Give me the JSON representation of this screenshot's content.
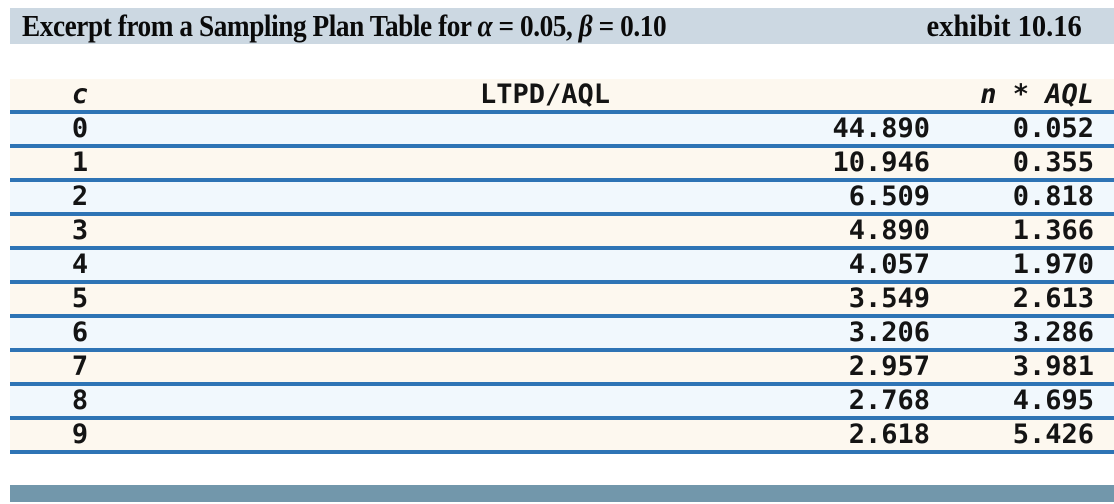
{
  "banner": {
    "title": {
      "part1": "Excerpt from a Sampling Plan Table for ",
      "alpha": "α",
      "part2": " = 0.05, ",
      "beta": "β",
      "part3": " = 0.10"
    },
    "exhibit": "exhibit 10.16",
    "bg_color": "#ccd8e2"
  },
  "table": {
    "columns": [
      "c",
      "LTPD/AQL",
      "n * AQL"
    ],
    "rows": [
      {
        "c": "0",
        "ltpd_aql": "44.890",
        "n_aql": "0.052"
      },
      {
        "c": "1",
        "ltpd_aql": "10.946",
        "n_aql": "0.355"
      },
      {
        "c": "2",
        "ltpd_aql": "6.509",
        "n_aql": "0.818"
      },
      {
        "c": "3",
        "ltpd_aql": "4.890",
        "n_aql": "1.366"
      },
      {
        "c": "4",
        "ltpd_aql": "4.057",
        "n_aql": "1.970"
      },
      {
        "c": "5",
        "ltpd_aql": "3.549",
        "n_aql": "2.613"
      },
      {
        "c": "6",
        "ltpd_aql": "3.206",
        "n_aql": "3.286"
      },
      {
        "c": "7",
        "ltpd_aql": "2.957",
        "n_aql": "3.981"
      },
      {
        "c": "8",
        "ltpd_aql": "2.768",
        "n_aql": "4.695"
      },
      {
        "c": "9",
        "ltpd_aql": "2.618",
        "n_aql": "5.426"
      }
    ],
    "colors": {
      "rule_blue": "#2e74b5",
      "row_cream": "#fdf8ef",
      "row_light_blue": "#f1f8fd"
    }
  },
  "footer": {
    "bar_color": "#7297ab"
  }
}
